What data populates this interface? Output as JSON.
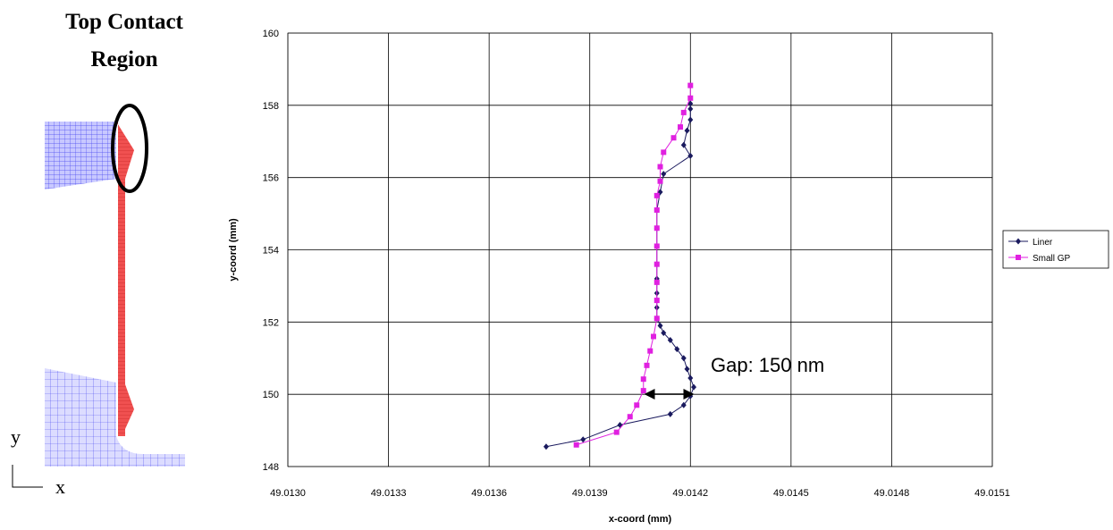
{
  "figure": {
    "title_line1": "Top Contact",
    "title_line2": "Region",
    "y_label": "y",
    "x_label": "x"
  },
  "chart_data": {
    "type": "line",
    "x_label": "x-coord (mm)",
    "y_label": "y-coord (mm)",
    "annotation": "Gap: 150 nm",
    "xlim": [
      49.013,
      49.0151
    ],
    "ylim": [
      148,
      160
    ],
    "xticks": [
      {
        "value": 49.013,
        "label": "49.0130"
      },
      49.0133,
      49.0136,
      49.0139,
      49.0142,
      49.0145,
      49.0148,
      49.0151
    ],
    "yticks": [
      148,
      150,
      152,
      154,
      156,
      158,
      160
    ],
    "grid": true,
    "legend": "right",
    "series": [
      {
        "name": "Liner",
        "color": "#1a1a5e",
        "marker": "diamond",
        "x": [
          49.01377,
          49.01388,
          49.01399,
          49.01414,
          49.01418,
          49.0142,
          49.01421,
          49.0142,
          49.01419,
          49.01418,
          49.01416,
          49.01414,
          49.01412,
          49.01411,
          49.0141,
          49.0141,
          49.0141,
          49.0141,
          49.0141,
          49.0141,
          49.0141,
          49.0141,
          49.01411,
          49.01412,
          49.0142,
          49.01418,
          49.01419,
          49.0142,
          49.0142,
          49.0142
        ],
        "values": [
          148.55,
          148.75,
          149.15,
          149.45,
          149.7,
          149.95,
          150.2,
          150.45,
          150.7,
          151,
          151.25,
          151.5,
          151.7,
          151.9,
          152.1,
          152.4,
          152.8,
          153.2,
          153.6,
          154.1,
          154.6,
          155.1,
          155.6,
          156.1,
          156.6,
          156.9,
          157.3,
          157.6,
          157.9,
          158.05
        ]
      },
      {
        "name": "Small GP",
        "color": "#e020e0",
        "marker": "square",
        "x": [
          49.01386,
          49.01398,
          49.01402,
          49.01404,
          49.01406,
          49.01406,
          49.01407,
          49.01408,
          49.01409,
          49.0141,
          49.0141,
          49.0141,
          49.0141,
          49.0141,
          49.0141,
          49.0141,
          49.0141,
          49.01411,
          49.01411,
          49.01412,
          49.01415,
          49.01417,
          49.01418,
          49.0142,
          49.0142
        ],
        "values": [
          148.6,
          148.95,
          149.38,
          149.7,
          150.1,
          150.42,
          150.8,
          151.2,
          151.6,
          152.1,
          152.6,
          153.1,
          153.6,
          154.1,
          154.6,
          155.1,
          155.5,
          155.9,
          156.3,
          156.7,
          157.1,
          157.4,
          157.8,
          158.2,
          158.55
        ]
      }
    ]
  }
}
